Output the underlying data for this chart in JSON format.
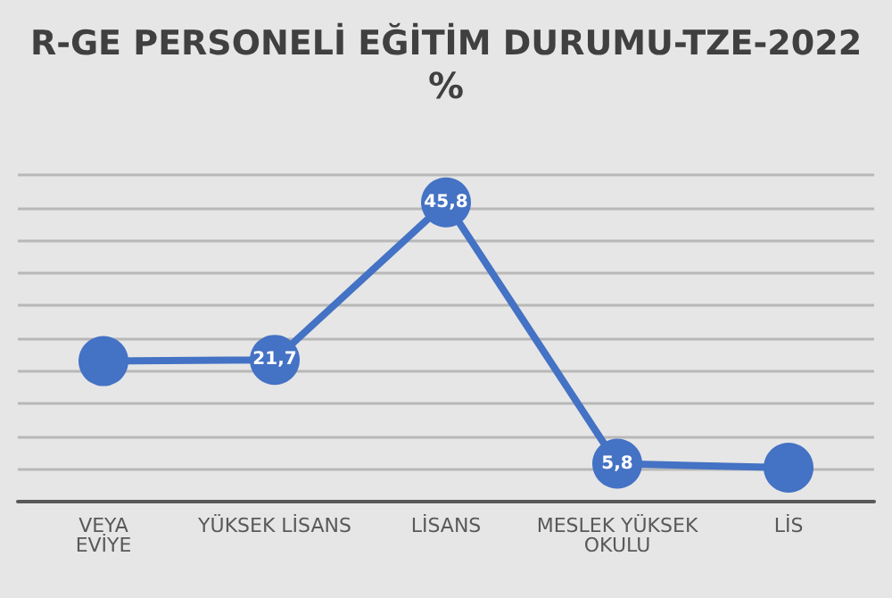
{
  "chart_data": {
    "type": "line",
    "title": "R-GE PERSONELİ EĞİTİM DURUMU-TZE-2022",
    "subtitle": "%",
    "categories": [
      "VEYA\nEVİYE",
      "YÜKSEK LİSANS",
      "LİSANS",
      "MESLEK YÜKSEK\nOKULU",
      "LİS"
    ],
    "series": [
      {
        "color": "#4472c4",
        "values": [
          21.5,
          21.7,
          45.8,
          5.8,
          5.2
        ],
        "value_labels": [
          null,
          "21,7",
          "45,8",
          "5,8",
          null
        ]
      }
    ],
    "ylim": [
      0,
      50
    ],
    "yticks": [
      {
        "value": 0,
        "label": null
      },
      {
        "value": 5,
        "label": null
      },
      {
        "value": 10,
        "label": null
      },
      {
        "value": 15,
        "label": null
      },
      {
        "value": 20,
        "label": null
      },
      {
        "value": 25,
        "label": null
      },
      {
        "value": 30,
        "label": null
      },
      {
        "value": 35,
        "label": null
      },
      {
        "value": 40,
        "label": null
      },
      {
        "value": 45,
        "label": null
      },
      {
        "value": 50,
        "label": null
      }
    ],
    "grid": "y",
    "marker": "circle",
    "line_style": "solid",
    "tick_labels": "x"
  }
}
